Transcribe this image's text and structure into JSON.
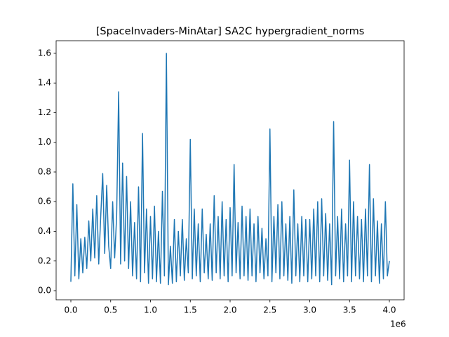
{
  "chart_data": {
    "type": "line",
    "title": "[SpaceInvaders-MinAtar] SA2C hypergradient_norms",
    "x_offset_label": "1e6",
    "x": [
      0,
      25000,
      50000,
      75000,
      100000,
      125000,
      150000,
      175000,
      200000,
      225000,
      250000,
      275000,
      300000,
      325000,
      350000,
      375000,
      400000,
      425000,
      450000,
      475000,
      500000,
      525000,
      550000,
      575000,
      600000,
      625000,
      650000,
      675000,
      700000,
      725000,
      750000,
      775000,
      800000,
      825000,
      850000,
      875000,
      900000,
      925000,
      950000,
      975000,
      1000000,
      1025000,
      1050000,
      1075000,
      1100000,
      1125000,
      1150000,
      1175000,
      1200000,
      1225000,
      1250000,
      1275000,
      1300000,
      1325000,
      1350000,
      1375000,
      1400000,
      1425000,
      1450000,
      1475000,
      1500000,
      1525000,
      1550000,
      1575000,
      1600000,
      1625000,
      1650000,
      1675000,
      1700000,
      1725000,
      1750000,
      1775000,
      1800000,
      1825000,
      1850000,
      1875000,
      1900000,
      1925000,
      1950000,
      1975000,
      2000000,
      2025000,
      2050000,
      2075000,
      2100000,
      2125000,
      2150000,
      2175000,
      2200000,
      2225000,
      2250000,
      2275000,
      2300000,
      2325000,
      2350000,
      2375000,
      2400000,
      2425000,
      2450000,
      2475000,
      2500000,
      2525000,
      2550000,
      2575000,
      2600000,
      2625000,
      2650000,
      2675000,
      2700000,
      2725000,
      2750000,
      2775000,
      2800000,
      2825000,
      2850000,
      2875000,
      2900000,
      2925000,
      2950000,
      2975000,
      3000000,
      3025000,
      3050000,
      3075000,
      3100000,
      3125000,
      3150000,
      3175000,
      3200000,
      3225000,
      3250000,
      3275000,
      3300000,
      3325000,
      3350000,
      3375000,
      3400000,
      3425000,
      3450000,
      3475000,
      3500000,
      3525000,
      3550000,
      3575000,
      3600000,
      3625000,
      3650000,
      3675000,
      3700000,
      3725000,
      3750000,
      3775000,
      3800000,
      3825000,
      3850000,
      3875000,
      3900000,
      3925000,
      3950000,
      3975000,
      4000000
    ],
    "series": [
      {
        "name": "hypergradient_norms",
        "color": "#1f77b4",
        "values": [
          0.06,
          0.72,
          0.1,
          0.58,
          0.08,
          0.35,
          0.12,
          0.36,
          0.15,
          0.47,
          0.2,
          0.55,
          0.22,
          0.64,
          0.18,
          0.5,
          0.79,
          0.25,
          0.71,
          0.3,
          0.15,
          0.6,
          0.22,
          0.5,
          1.34,
          0.18,
          0.86,
          0.2,
          0.77,
          0.15,
          0.6,
          0.1,
          0.46,
          0.08,
          0.7,
          0.06,
          1.06,
          0.12,
          0.55,
          0.05,
          0.5,
          0.08,
          0.57,
          0.06,
          0.4,
          0.05,
          0.67,
          0.1,
          1.6,
          0.04,
          0.3,
          0.05,
          0.48,
          0.06,
          0.4,
          0.1,
          0.48,
          0.07,
          0.35,
          0.12,
          1.02,
          0.08,
          0.55,
          0.1,
          0.45,
          0.06,
          0.55,
          0.12,
          0.38,
          0.08,
          0.45,
          0.07,
          0.64,
          0.12,
          0.5,
          0.08,
          0.6,
          0.1,
          0.48,
          0.06,
          0.56,
          0.1,
          0.85,
          0.12,
          0.46,
          0.08,
          0.57,
          0.1,
          0.5,
          0.07,
          0.55,
          0.1,
          0.45,
          0.06,
          0.5,
          0.12,
          0.42,
          0.08,
          0.35,
          0.1,
          1.09,
          0.06,
          0.5,
          0.12,
          0.58,
          0.08,
          0.6,
          0.1,
          0.45,
          0.07,
          0.5,
          0.05,
          0.68,
          0.1,
          0.45,
          0.06,
          0.5,
          0.1,
          0.48,
          0.06,
          0.48,
          0.08,
          0.55,
          0.1,
          0.6,
          0.06,
          0.62,
          0.1,
          0.52,
          0.07,
          0.45,
          0.04,
          1.14,
          0.1,
          0.5,
          0.08,
          0.55,
          0.06,
          0.45,
          0.1,
          0.88,
          0.06,
          0.6,
          0.1,
          0.5,
          0.08,
          0.48,
          0.06,
          0.55,
          0.1,
          0.85,
          0.06,
          0.62,
          0.1,
          0.47,
          0.05,
          0.45,
          0.08,
          0.6,
          0.1,
          0.2
        ]
      }
    ],
    "xlim": [
      -185000,
      4185000
    ],
    "ylim": [
      -0.0615,
      1.685
    ],
    "xticks": [
      {
        "value": 0,
        "label": "0.0"
      },
      {
        "value": 500000,
        "label": "0.5"
      },
      {
        "value": 1000000,
        "label": "1.0"
      },
      {
        "value": 1500000,
        "label": "1.5"
      },
      {
        "value": 2000000,
        "label": "2.0"
      },
      {
        "value": 2500000,
        "label": "2.5"
      },
      {
        "value": 3000000,
        "label": "3.0"
      },
      {
        "value": 3500000,
        "label": "3.5"
      },
      {
        "value": 4000000,
        "label": "4.0"
      }
    ],
    "yticks": [
      {
        "value": 0,
        "label": "0.0"
      },
      0.2,
      0.4,
      0.6,
      0.8,
      {
        "value": 1,
        "label": "1.0"
      },
      1.2,
      1.4,
      1.6
    ]
  }
}
